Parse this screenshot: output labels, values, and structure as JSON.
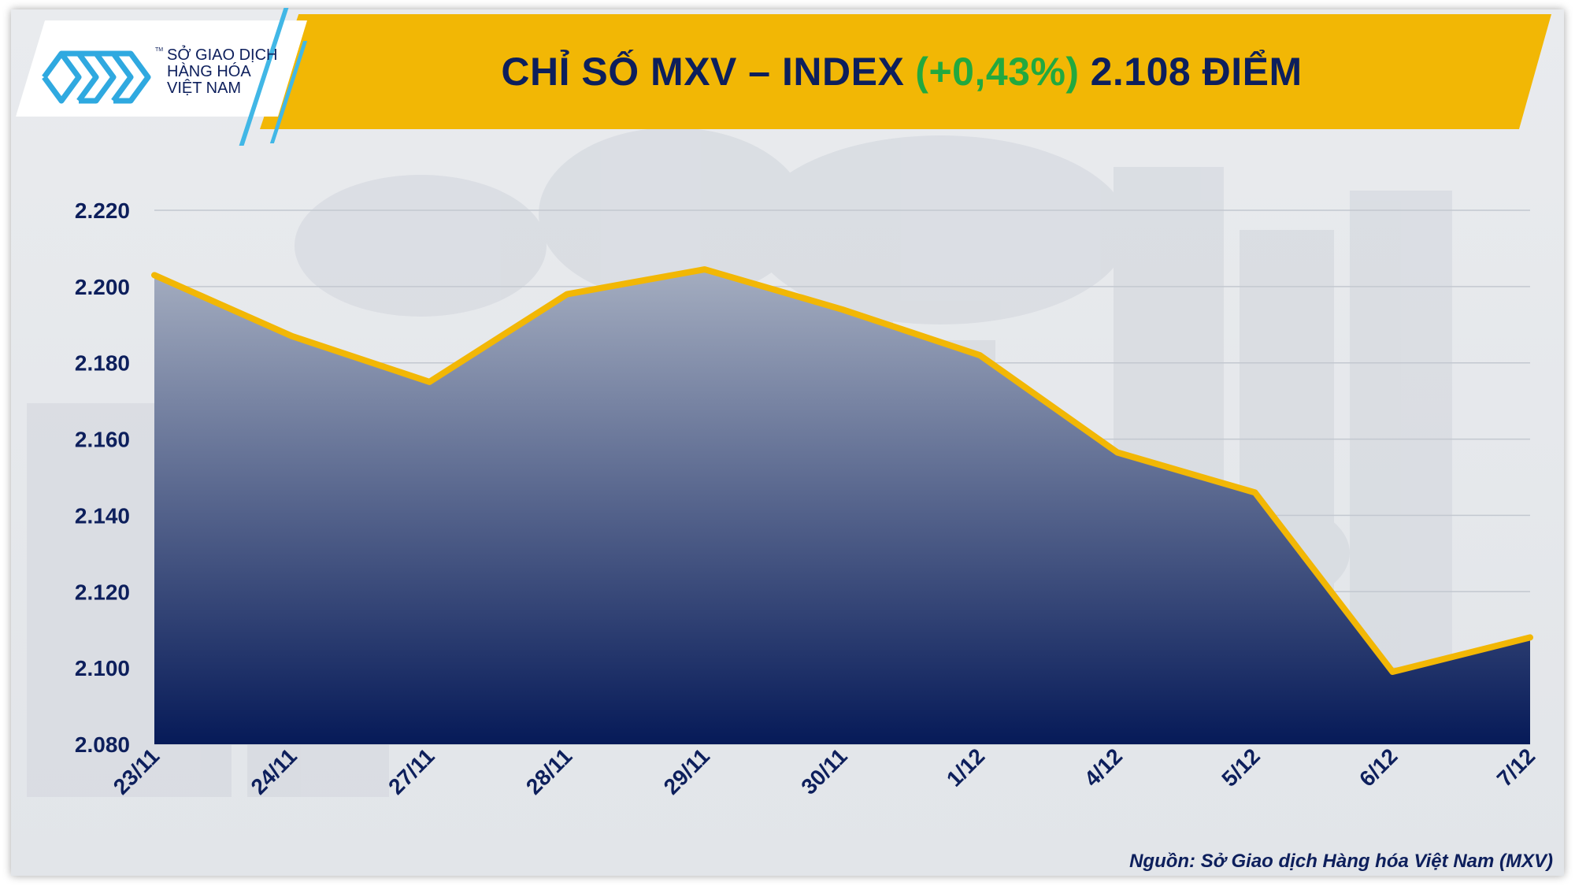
{
  "header": {
    "title_prefix": "CHỈ SỐ MXV – INDEX",
    "change_pct": "(+0,43%)",
    "title_suffix": "2.108 ĐIỂM"
  },
  "logo": {
    "line1": "SỞ GIAO DỊCH",
    "line2": "HÀNG HÓA",
    "line3": "VIỆT NAM",
    "tm": "TM"
  },
  "colors": {
    "banner": "#f2b705",
    "title": "#0d1f5c",
    "change": "#22a93f",
    "line": "#f2b705",
    "area_top": "#a4adc0",
    "area_bottom": "#061a58"
  },
  "chart_data": {
    "type": "area",
    "title": "CHỈ SỐ MXV – INDEX (+0,43%) 2.108 ĐIỂM",
    "categories": [
      "23/11",
      "24/11",
      "27/11",
      "28/11",
      "29/11",
      "30/11",
      "1/12",
      "4/12",
      "5/12",
      "6/12",
      "7/12"
    ],
    "series": [
      {
        "name": "MXV-Index",
        "values": [
          2203,
          2187,
          2175,
          2198,
          2204.5,
          2194,
          2182,
          2156.5,
          2146,
          2099,
          2108
        ]
      }
    ],
    "ylim": [
      2080,
      2220
    ],
    "yticks": [
      2080,
      2100,
      2120,
      2140,
      2160,
      2180,
      2200,
      2220
    ],
    "ytick_labels": [
      "2.080",
      "2.100",
      "2.120",
      "2.140",
      "2.160",
      "2.180",
      "2.200",
      "2.220"
    ],
    "xlabel": "",
    "ylabel": "",
    "grid": true
  },
  "footer": {
    "source": "Nguồn: Sở Giao dịch Hàng hóa Việt Nam (MXV)"
  }
}
